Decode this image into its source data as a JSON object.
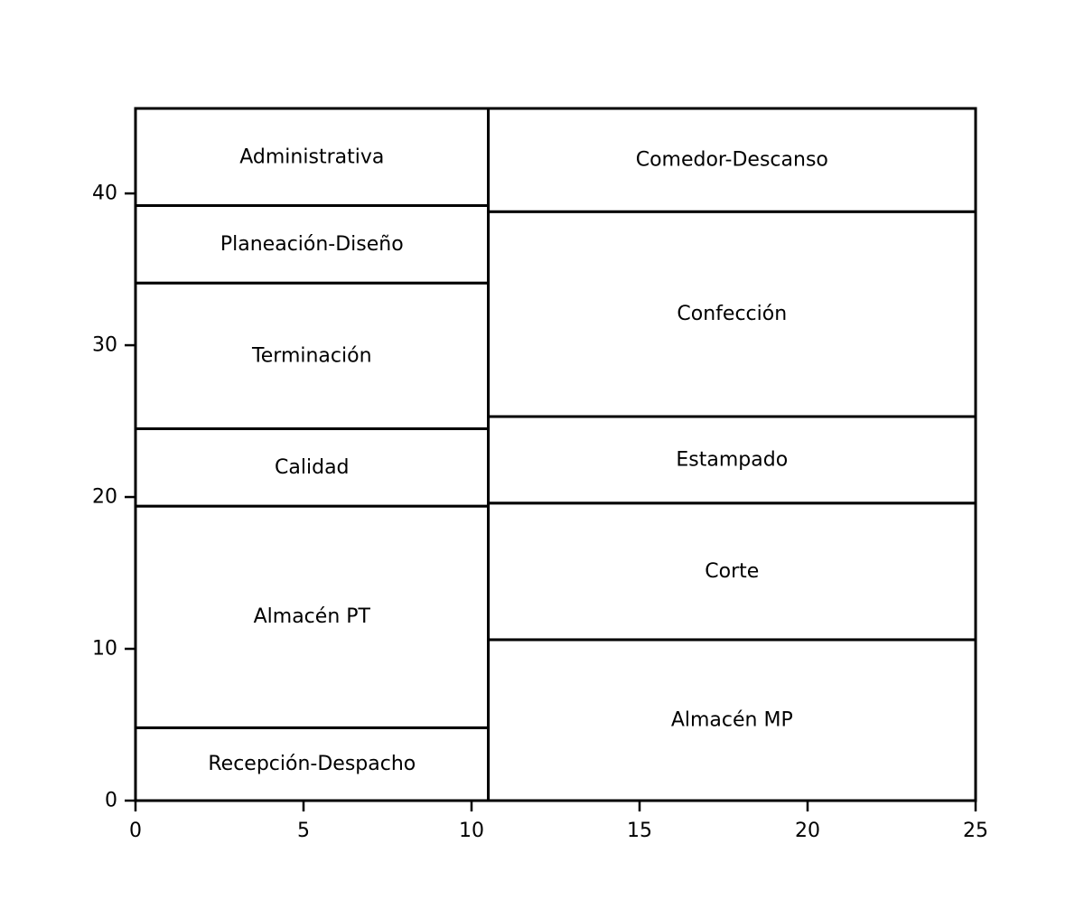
{
  "chart_data": {
    "type": "layout",
    "xlim": [
      0,
      25
    ],
    "ylim": [
      0,
      45.6
    ],
    "x_ticks": [
      0,
      5,
      10,
      15,
      20,
      25
    ],
    "y_ticks": [
      0,
      10,
      20,
      30,
      40
    ],
    "rooms": [
      {
        "label": "Recepción-Despacho",
        "x": [
          0,
          10.5
        ],
        "y": [
          0,
          4.8
        ]
      },
      {
        "label": "Almacén PT",
        "x": [
          0,
          10.5
        ],
        "y": [
          4.8,
          19.4
        ]
      },
      {
        "label": "Calidad",
        "x": [
          0,
          10.5
        ],
        "y": [
          19.4,
          24.5
        ]
      },
      {
        "label": "Terminación",
        "x": [
          0,
          10.5
        ],
        "y": [
          24.5,
          34.1
        ]
      },
      {
        "label": "Planeación-Diseño",
        "x": [
          0,
          10.5
        ],
        "y": [
          34.1,
          39.2
        ]
      },
      {
        "label": "Administrativa",
        "x": [
          0,
          10.5
        ],
        "y": [
          39.2,
          45.6
        ]
      },
      {
        "label": "Almacén MP",
        "x": [
          10.5,
          25
        ],
        "y": [
          0,
          10.6
        ]
      },
      {
        "label": "Corte",
        "x": [
          10.5,
          25
        ],
        "y": [
          10.6,
          19.6
        ]
      },
      {
        "label": "Estampado",
        "x": [
          10.5,
          25
        ],
        "y": [
          19.6,
          25.3
        ]
      },
      {
        "label": "Confección",
        "x": [
          10.5,
          25
        ],
        "y": [
          25.3,
          38.8
        ]
      },
      {
        "label": "Comedor-Descanso",
        "x": [
          10.5,
          25
        ],
        "y": [
          38.8,
          45.6
        ]
      }
    ]
  }
}
